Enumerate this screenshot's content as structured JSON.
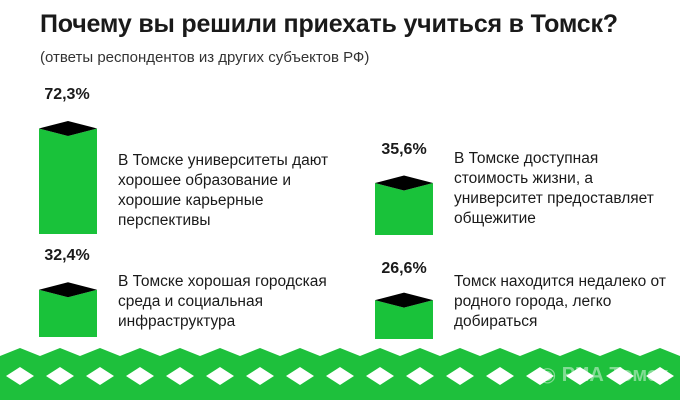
{
  "title": "Почему вы решили приехать учиться в Томск?",
  "subtitle": "(ответы респондентов из других субъектов РФ)",
  "colors": {
    "bar_front": "#19c23a",
    "bar_top": "#000000",
    "wave": "#1ec03c"
  },
  "chart_data": {
    "type": "bar",
    "value_unit": "%",
    "items": [
      {
        "label": "72,3%",
        "value": 72.3,
        "caption": "В Томске университеты дают хорошее образование и хорошие карьерные перспективы"
      },
      {
        "label": "32,4%",
        "value": 32.4,
        "caption": "В Томске хорошая городская среда и социальная инфраструктура"
      },
      {
        "label": "35,6%",
        "value": 35.6,
        "caption": "В Томске доступная стоимость жизни, а университет предоставляет общежитие"
      },
      {
        "label": "26,6%",
        "value": 26.6,
        "caption": "Томск находится недалеко от родного города, легко добираться"
      }
    ]
  },
  "watermark": "РИА Томск",
  "watermark_icon": "ria-logo-icon"
}
